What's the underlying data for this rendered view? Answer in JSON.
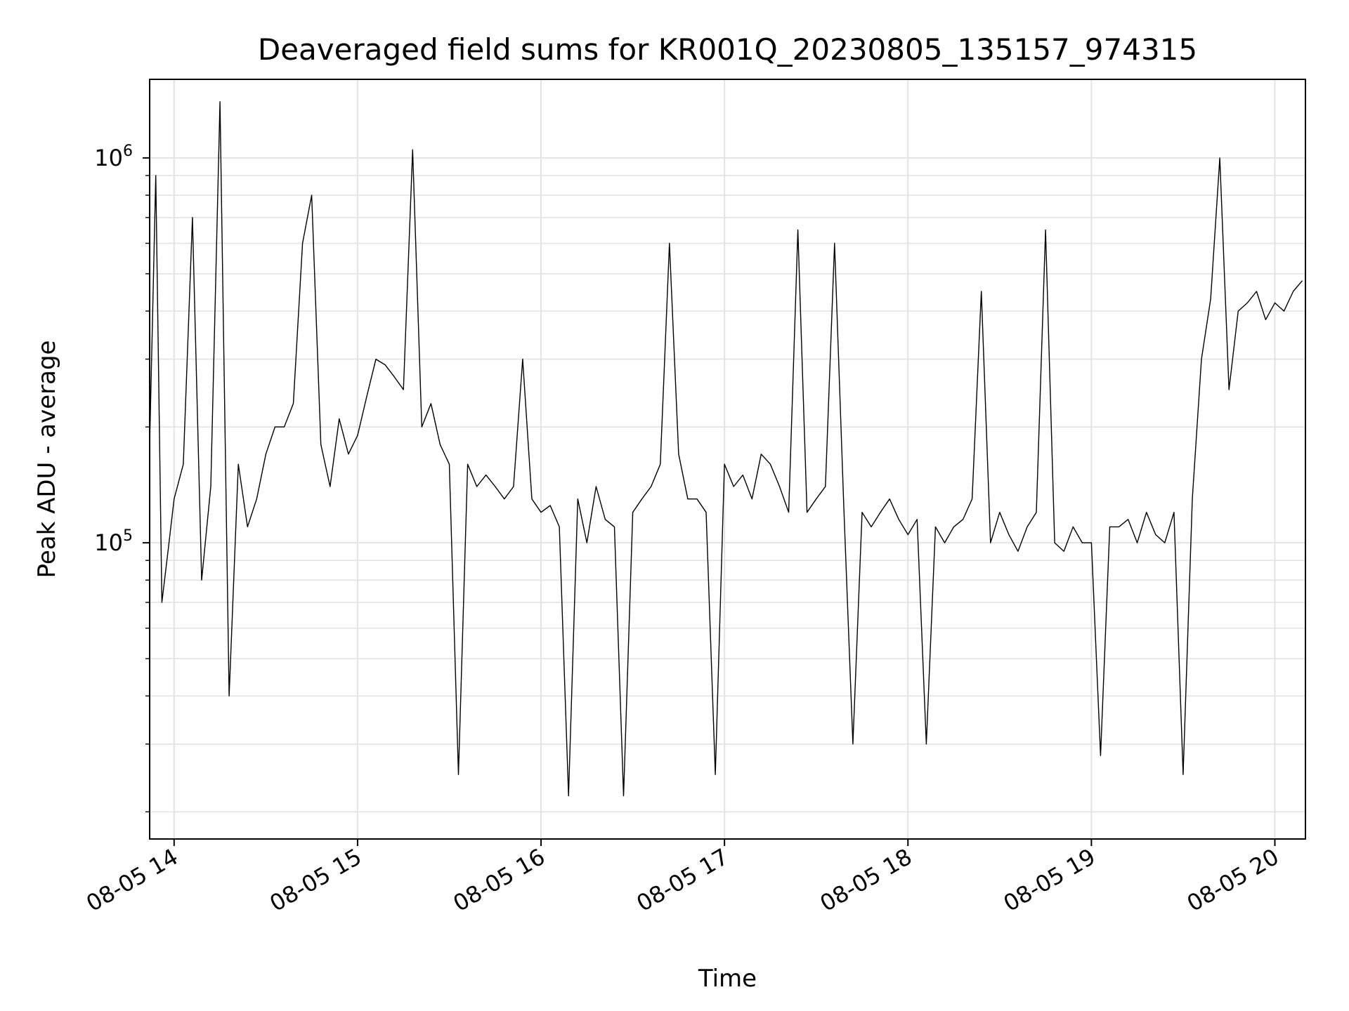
{
  "chart_data": {
    "type": "line",
    "title": "Deaveraged field sums for KR001Q_20230805_135157_974315",
    "xlabel": "Time",
    "ylabel": "Peak ADU - average",
    "yscale": "log",
    "ylim": [
      17000,
      1600000
    ],
    "xlim": [
      "2023-08-05 13:52",
      "2023-08-05 20:10"
    ],
    "x_ticks": [
      {
        "label": "08-05 14",
        "value": "2023-08-05 14:00"
      },
      {
        "label": "08-05 15",
        "value": "2023-08-05 15:00"
      },
      {
        "label": "08-05 16",
        "value": "2023-08-05 16:00"
      },
      {
        "label": "08-05 17",
        "value": "2023-08-05 17:00"
      },
      {
        "label": "08-05 18",
        "value": "2023-08-05 18:00"
      },
      {
        "label": "08-05 19",
        "value": "2023-08-05 19:00"
      },
      {
        "label": "08-05 20",
        "value": "2023-08-05 20:00"
      }
    ],
    "y_ticks": [
      {
        "base": "10",
        "exp": "5",
        "value": 100000
      },
      {
        "base": "10",
        "exp": "6",
        "value": 1000000
      }
    ],
    "grid": true,
    "line_color": "#000000",
    "series": [
      {
        "x": [
          "2023-08-05 13:52",
          "2023-08-05 13:54",
          "2023-08-05 13:56",
          "2023-08-05 13:58",
          "2023-08-05 14:00",
          "2023-08-05 14:03",
          "2023-08-05 14:06",
          "2023-08-05 14:09",
          "2023-08-05 14:12",
          "2023-08-05 14:15",
          "2023-08-05 14:18",
          "2023-08-05 14:21",
          "2023-08-05 14:24",
          "2023-08-05 14:27",
          "2023-08-05 14:30",
          "2023-08-05 14:33",
          "2023-08-05 14:36",
          "2023-08-05 14:39",
          "2023-08-05 14:42",
          "2023-08-05 14:45",
          "2023-08-05 14:48",
          "2023-08-05 14:51",
          "2023-08-05 14:54",
          "2023-08-05 14:57",
          "2023-08-05 15:00",
          "2023-08-05 15:03",
          "2023-08-05 15:06",
          "2023-08-05 15:09",
          "2023-08-05 15:12",
          "2023-08-05 15:15",
          "2023-08-05 15:18",
          "2023-08-05 15:21",
          "2023-08-05 15:24",
          "2023-08-05 15:27",
          "2023-08-05 15:30",
          "2023-08-05 15:33",
          "2023-08-05 15:36",
          "2023-08-05 15:39",
          "2023-08-05 15:42",
          "2023-08-05 15:45",
          "2023-08-05 15:48",
          "2023-08-05 15:51",
          "2023-08-05 15:54",
          "2023-08-05 15:57",
          "2023-08-05 16:00",
          "2023-08-05 16:03",
          "2023-08-05 16:06",
          "2023-08-05 16:09",
          "2023-08-05 16:12",
          "2023-08-05 16:15",
          "2023-08-05 16:18",
          "2023-08-05 16:21",
          "2023-08-05 16:24",
          "2023-08-05 16:27",
          "2023-08-05 16:30",
          "2023-08-05 16:33",
          "2023-08-05 16:36",
          "2023-08-05 16:39",
          "2023-08-05 16:42",
          "2023-08-05 16:45",
          "2023-08-05 16:48",
          "2023-08-05 16:51",
          "2023-08-05 16:54",
          "2023-08-05 16:57",
          "2023-08-05 17:00",
          "2023-08-05 17:03",
          "2023-08-05 17:06",
          "2023-08-05 17:09",
          "2023-08-05 17:12",
          "2023-08-05 17:15",
          "2023-08-05 17:18",
          "2023-08-05 17:21",
          "2023-08-05 17:24",
          "2023-08-05 17:27",
          "2023-08-05 17:30",
          "2023-08-05 17:33",
          "2023-08-05 17:36",
          "2023-08-05 17:39",
          "2023-08-05 17:42",
          "2023-08-05 17:45",
          "2023-08-05 17:48",
          "2023-08-05 17:51",
          "2023-08-05 17:54",
          "2023-08-05 17:57",
          "2023-08-05 18:00",
          "2023-08-05 18:03",
          "2023-08-05 18:06",
          "2023-08-05 18:09",
          "2023-08-05 18:12",
          "2023-08-05 18:15",
          "2023-08-05 18:18",
          "2023-08-05 18:21",
          "2023-08-05 18:24",
          "2023-08-05 18:27",
          "2023-08-05 18:30",
          "2023-08-05 18:33",
          "2023-08-05 18:36",
          "2023-08-05 18:39",
          "2023-08-05 18:42",
          "2023-08-05 18:45",
          "2023-08-05 18:48",
          "2023-08-05 18:51",
          "2023-08-05 18:54",
          "2023-08-05 18:57",
          "2023-08-05 19:00",
          "2023-08-05 19:03",
          "2023-08-05 19:06",
          "2023-08-05 19:09",
          "2023-08-05 19:12",
          "2023-08-05 19:15",
          "2023-08-05 19:18",
          "2023-08-05 19:21",
          "2023-08-05 19:24",
          "2023-08-05 19:27",
          "2023-08-05 19:30",
          "2023-08-05 19:33",
          "2023-08-05 19:36",
          "2023-08-05 19:39",
          "2023-08-05 19:42",
          "2023-08-05 19:45",
          "2023-08-05 19:48",
          "2023-08-05 19:51",
          "2023-08-05 19:54",
          "2023-08-05 19:57",
          "2023-08-05 20:00",
          "2023-08-05 20:03",
          "2023-08-05 20:06",
          "2023-08-05 20:09"
        ],
        "values": [
          180000,
          900000,
          70000,
          95000,
          130000,
          160000,
          700000,
          80000,
          140000,
          1400000,
          40000,
          160000,
          110000,
          130000,
          170000,
          200000,
          200000,
          230000,
          600000,
          800000,
          180000,
          140000,
          210000,
          170000,
          190000,
          240000,
          300000,
          290000,
          270000,
          250000,
          1050000,
          200000,
          230000,
          180000,
          160000,
          25000,
          160000,
          140000,
          150000,
          140000,
          130000,
          140000,
          300000,
          130000,
          120000,
          125000,
          110000,
          22000,
          130000,
          100000,
          140000,
          115000,
          110000,
          22000,
          120000,
          130000,
          140000,
          160000,
          600000,
          170000,
          130000,
          130000,
          120000,
          25000,
          160000,
          140000,
          150000,
          130000,
          170000,
          160000,
          140000,
          120000,
          650000,
          120000,
          130000,
          140000,
          600000,
          125000,
          30000,
          120000,
          110000,
          120000,
          130000,
          115000,
          105000,
          115000,
          30000,
          110000,
          100000,
          110000,
          115000,
          130000,
          450000,
          100000,
          120000,
          105000,
          95000,
          110000,
          120000,
          650000,
          100000,
          95000,
          110000,
          100000,
          100000,
          28000,
          110000,
          110000,
          115000,
          100000,
          120000,
          105000,
          100000,
          120000,
          25000,
          130000,
          300000,
          430000,
          1000000,
          250000,
          400000,
          420000,
          450000,
          380000,
          420000,
          400000,
          450000,
          480000
        ]
      }
    ]
  }
}
